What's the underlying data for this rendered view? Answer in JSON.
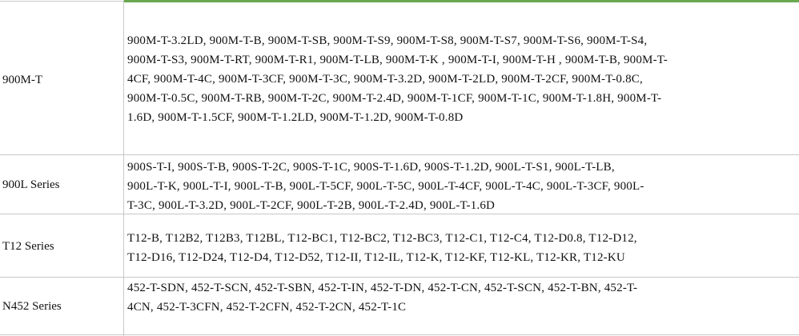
{
  "accent_color": "#6aa84f",
  "rows": [
    {
      "label": "900M-T",
      "lines": [
        "900M-T-3.2LD, 900M-T-B, 900M-T-SB, 900M-T-S9, 900M-T-S8, 900M-T-S7, 900M-T-S6, 900M-T-S4,",
        "900M-T-S3, 900M-T-RT, 900M-T-R1, 900M-T-LB, 900M-T-K , 900M-T-I, 900M-T-H , 900M-T-B, 900M-T-",
        "4CF, 900M-T-4C, 900M-T-3CF, 900M-T-3C, 900M-T-3.2D, 900M-T-2LD, 900M-T-2CF, 900M-T-0.8C,",
        "900M-T-0.5C, 900M-T-RB, 900M-T-2C, 900M-T-2.4D, 900M-T-1CF, 900M-T-1C, 900M-T-1.8H, 900M-T-",
        "1.6D, 900M-T-1.5CF, 900M-T-1.2LD, 900M-T-1.2D, 900M-T-0.8D"
      ]
    },
    {
      "label": "900L Series",
      "lines": [
        "900S-T-I, 900S-T-B, 900S-T-2C, 900S-T-1C, 900S-T-1.6D, 900S-T-1.2D, 900L-T-S1, 900L-T-LB,",
        "900L-T-K, 900L-T-I, 900L-T-B, 900L-T-5CF, 900L-T-5C, 900L-T-4CF, 900L-T-4C, 900L-T-3CF, 900L-",
        "T-3C, 900L-T-3.2D, 900L-T-2CF, 900L-T-2B, 900L-T-2.4D, 900L-T-1.6D"
      ]
    },
    {
      "label": "T12 Series",
      "lines": [
        "T12-B, T12B2, T12B3, T12BL, T12-BC1, T12-BC2, T12-BC3, T12-C1, T12-C4, T12-D0.8, T12-D12,",
        "T12-D16, T12-D24, T12-D4, T12-D52, T12-II, T12-IL, T12-K, T12-KF, T12-KL, T12-KR, T12-KU"
      ]
    },
    {
      "label": "N452 Series",
      "lines": [
        "452-T-SDN, 452-T-SCN, 452-T-SBN, 452-T-IN, 452-T-DN, 452-T-CN, 452-T-SCN, 452-T-BN, 452-T-",
        "4CN, 452-T-3CFN, 452-T-2CFN, 452-T-2CN, 452-T-1C"
      ]
    }
  ]
}
